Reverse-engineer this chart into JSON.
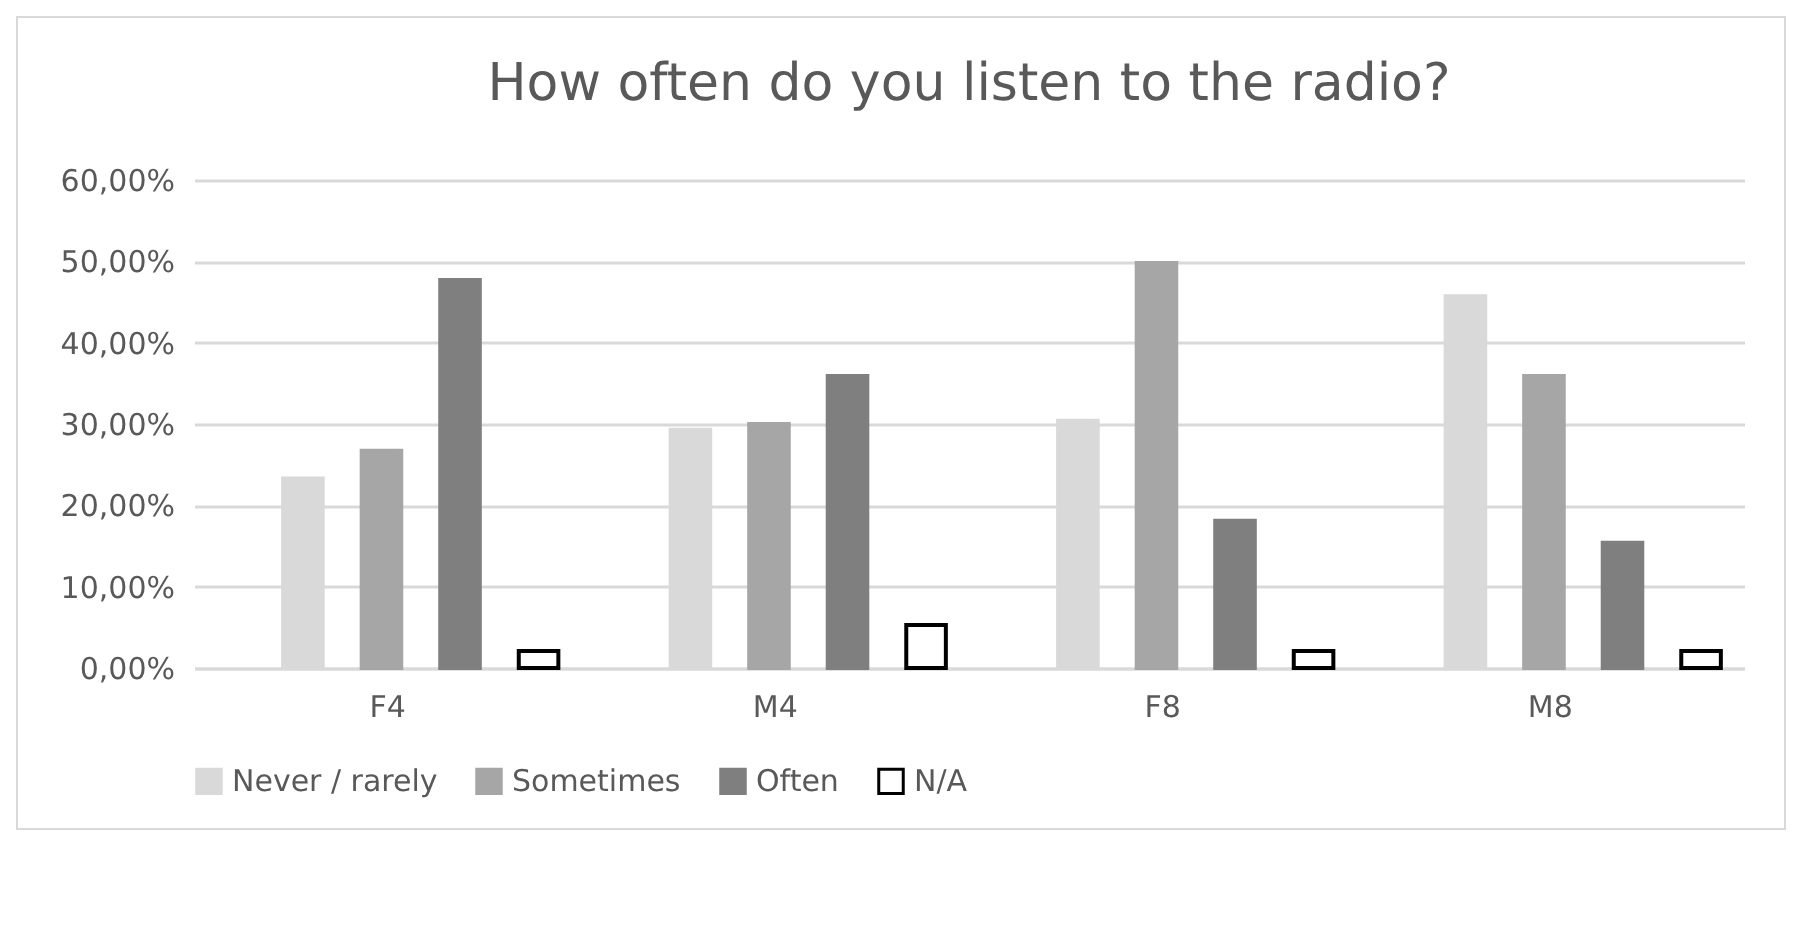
{
  "chart_data": {
    "type": "bar",
    "title": "How often do you listen to the radio?",
    "categories": [
      "F4",
      "M4",
      "F8",
      "M8"
    ],
    "series": [
      {
        "name": "Never / rarely",
        "color": "#d9d9d9",
        "values": [
          23.3,
          29.3,
          30.4,
          45.7
        ]
      },
      {
        "name": "Sometimes",
        "color": "#a6a6a6",
        "values": [
          26.7,
          30.0,
          49.8,
          35.9
        ]
      },
      {
        "name": "Often",
        "color": "#7f7f7f",
        "values": [
          47.7,
          35.9,
          18.1,
          15.4
        ]
      },
      {
        "name": "N/A",
        "color": "#ffffff",
        "values": [
          2.1,
          5.3,
          2.1,
          2.1
        ]
      }
    ],
    "ylim": [
      0,
      60
    ],
    "yticks": [
      {
        "value": 0,
        "label": "0,00%"
      },
      {
        "value": 10,
        "label": "10,00%"
      },
      {
        "value": 20,
        "label": "20,00%"
      },
      {
        "value": 30,
        "label": "30,00%"
      },
      {
        "value": 40,
        "label": "40,00%"
      },
      {
        "value": 50,
        "label": "50,00%"
      },
      {
        "value": 60,
        "label": "60,00%"
      }
    ],
    "grid": "y",
    "legend": "bottom"
  }
}
